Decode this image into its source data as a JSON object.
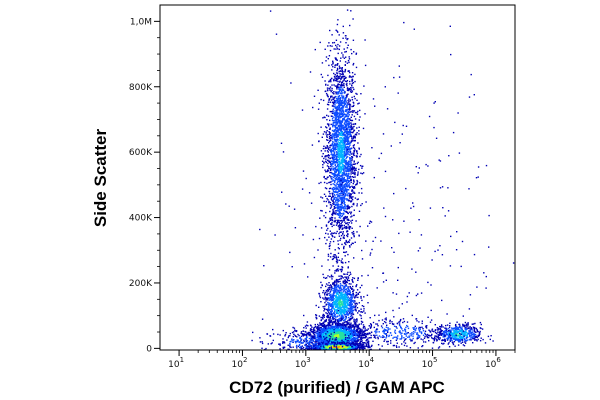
{
  "chart_data": {
    "type": "scatter",
    "subtype": "flow-cytometry-density-dot-plot",
    "title": "",
    "xlabel": "CD72 (purified) / GAM APC",
    "ylabel": "Side Scatter",
    "x_scale": "log",
    "y_scale": "linear",
    "xlim": [
      5,
      2000000
    ],
    "ylim": [
      -5000,
      1050000
    ],
    "grid": false,
    "legend": "none",
    "x_ticks": [
      {
        "value": 10,
        "base": "10",
        "exp": "1"
      },
      {
        "value": 100,
        "base": "10",
        "exp": "2"
      },
      {
        "value": 1000,
        "base": "10",
        "exp": "3"
      },
      {
        "value": 10000,
        "base": "10",
        "exp": "4"
      },
      {
        "value": 100000,
        "base": "10",
        "exp": "5"
      },
      {
        "value": 1000000,
        "base": "10",
        "exp": "6"
      }
    ],
    "y_ticks": [
      {
        "value": 0,
        "label": "0"
      },
      {
        "value": 200000,
        "label": "200K"
      },
      {
        "value": 400000,
        "label": "400K"
      },
      {
        "value": 600000,
        "label": "600K"
      },
      {
        "value": 800000,
        "label": "800K"
      },
      {
        "value": 1000000,
        "label": "1,0M"
      }
    ],
    "density_colors": [
      "#0000b4",
      "#0d4dff",
      "#00b4ff",
      "#28e0a0",
      "#b4ff28",
      "#ffe600",
      "#ff8c00",
      "#ff1e00"
    ],
    "populations": [
      {
        "x_center": 3500,
        "y_center": 600000,
        "x_spread_log": 0.12,
        "y_spread": 150000,
        "points": 2600,
        "peak_color": "#00b4ff"
      },
      {
        "x_center": 3500,
        "y_center": 140000,
        "x_spread_log": 0.14,
        "y_spread": 40000,
        "points": 1000,
        "peak_color": "#28e0a0"
      },
      {
        "x_center": 3000,
        "y_center": 40000,
        "x_spread_log": 0.22,
        "y_spread": 20000,
        "points": 1800,
        "peak_color": "#b4ff28"
      },
      {
        "x_center": 3000,
        "y_center": 6000,
        "x_spread_log": 0.2,
        "y_spread": 6000,
        "points": 900,
        "peak_color": "#ff1e00"
      },
      {
        "x_center": 250000,
        "y_center": 45000,
        "x_spread_log": 0.18,
        "y_spread": 15000,
        "points": 500,
        "peak_color": "#28e0a0"
      },
      {
        "x_center": 30000,
        "y_center": 50000,
        "x_spread_log": 0.45,
        "y_spread": 25000,
        "points": 350,
        "peak_color": "#0d4dff"
      },
      {
        "x_center": 1000,
        "y_center": 20000,
        "x_spread_log": 0.35,
        "y_spread": 20000,
        "points": 300,
        "peak_color": "#0d4dff"
      },
      {
        "x_center": 20000,
        "y_center": 400000,
        "x_spread_log": 0.9,
        "y_spread": 300000,
        "points": 250,
        "peak_color": "#0000b4"
      }
    ]
  }
}
